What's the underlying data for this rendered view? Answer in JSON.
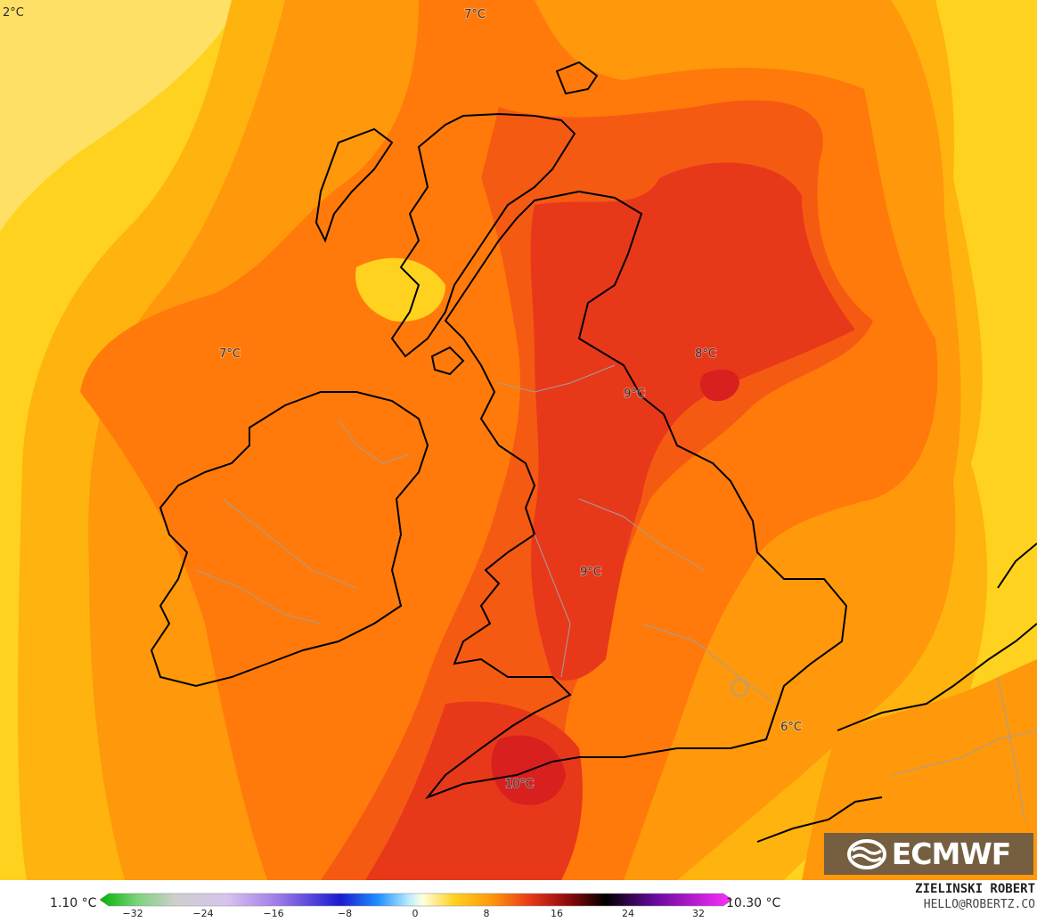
{
  "map": {
    "labels": [
      {
        "text": "7°C"
      },
      {
        "text": "7°C"
      },
      {
        "text": "8°C"
      },
      {
        "text": "9°C"
      },
      {
        "text": "9°C"
      },
      {
        "text": "6°C"
      },
      {
        "text": "10°C"
      }
    ],
    "corner_label": "2°C"
  },
  "logo": {
    "text": "ECMWF"
  },
  "legend": {
    "min_label": "1.10 °C",
    "max_label": "10.30 °C",
    "ticks": [
      "−32",
      "−24",
      "−16",
      "−8",
      "0",
      "8",
      "16",
      "24",
      "32"
    ]
  },
  "author": {
    "name": "ZIELINSKI ROBERT",
    "email": "HELLO@ROBERTZ.CO"
  },
  "colors": {
    "zone_1": "#fff2b3",
    "zone_2": "#ffe066",
    "zone_3": "#ffd21f",
    "zone_4": "#ffb30f",
    "zone_5": "#ff980a",
    "zone_6": "#ff7a0a",
    "zone_7": "#f55a12",
    "zone_8": "#e8381a",
    "zone_9": "#d8201e",
    "coastline": "#000000",
    "borders": "#a0a0a0"
  }
}
